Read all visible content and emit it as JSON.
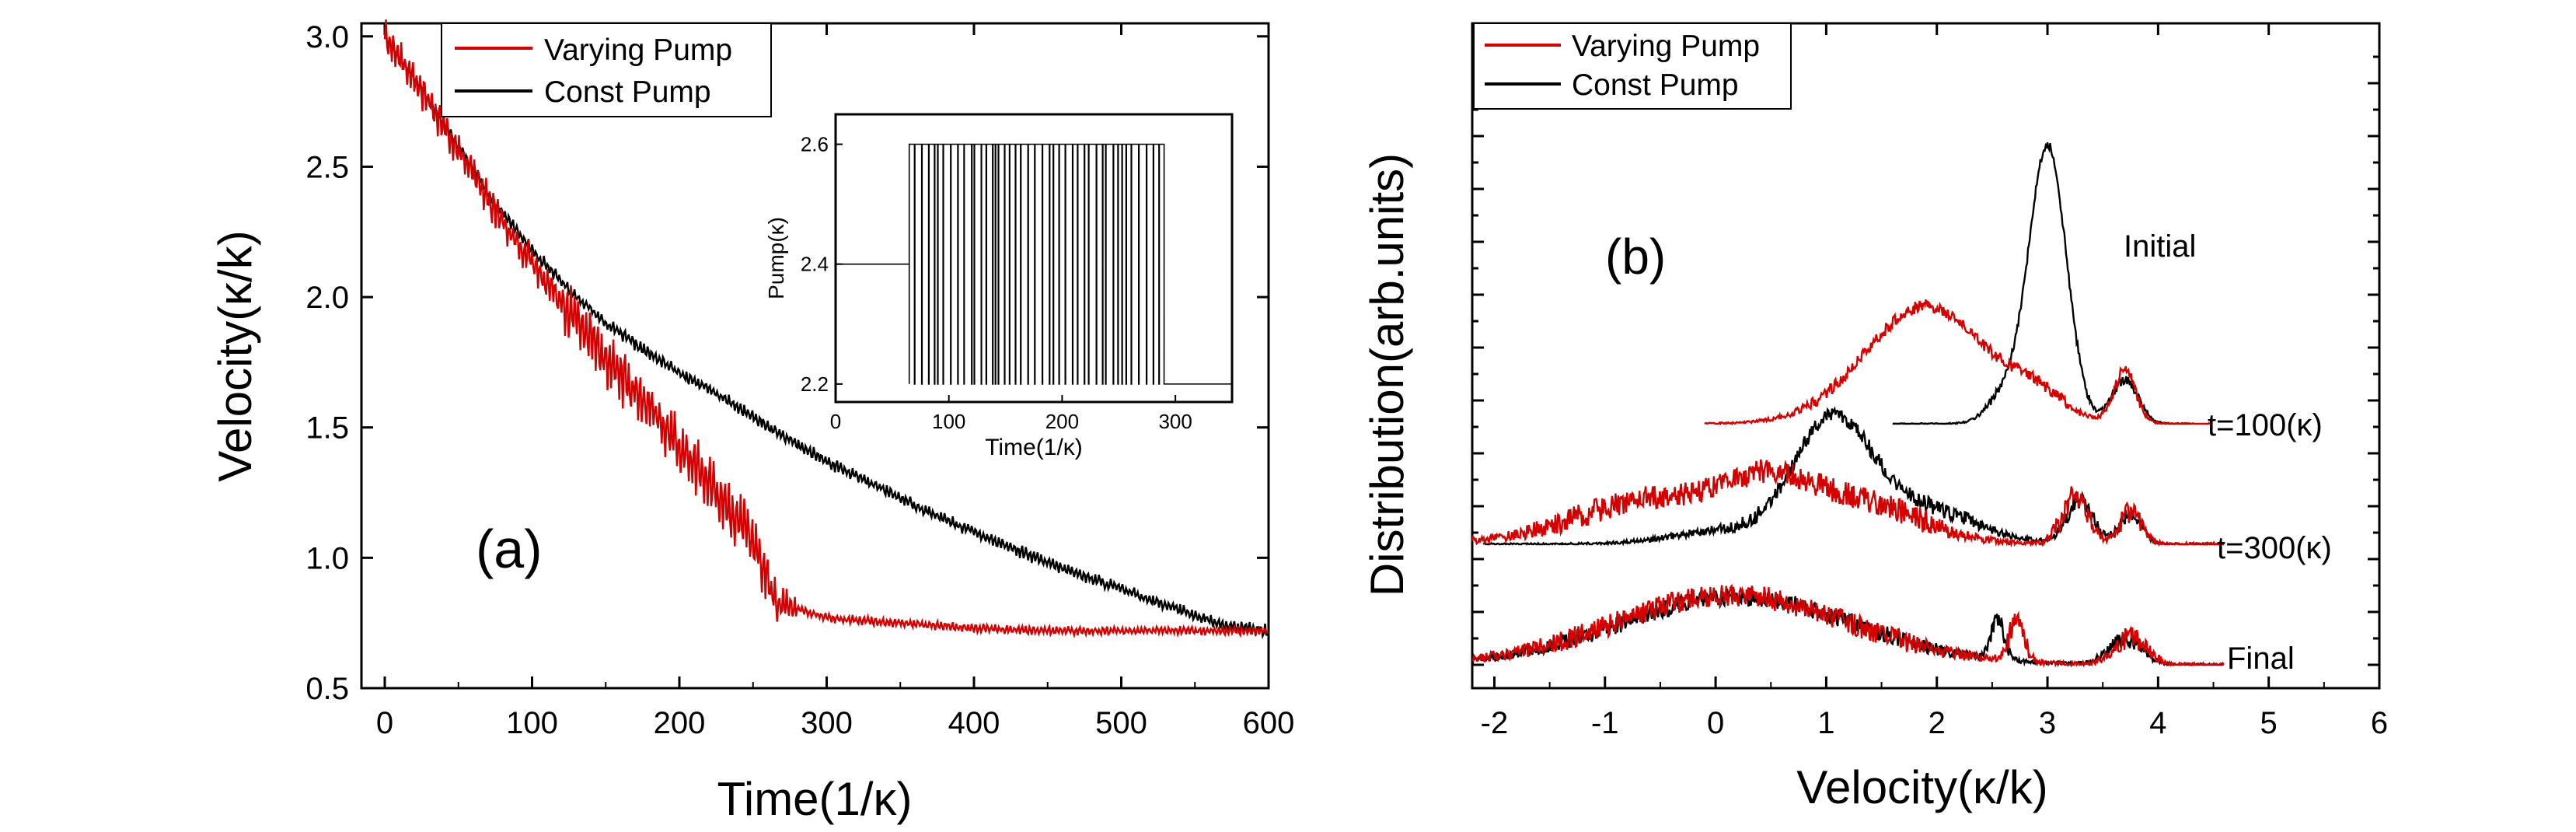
{
  "colors": {
    "varying": "#d40000",
    "const": "#000000"
  },
  "chart_data": [
    {
      "id": "a",
      "type": "line",
      "panel_label": "(a)",
      "xlabel": "Time(1/κ)",
      "ylabel": "Velocity(κ/k)",
      "xlim": [
        0,
        600
      ],
      "ylim": [
        0.5,
        3.05
      ],
      "x_ticks": [
        0,
        100,
        200,
        300,
        400,
        500,
        600
      ],
      "y_ticks": [
        0.5,
        1.0,
        1.5,
        2.0,
        2.5,
        3.0
      ],
      "x_tick_labels": [
        "0",
        "100",
        "200",
        "300",
        "400",
        "500",
        "600"
      ],
      "y_tick_labels": [
        "0.5",
        "1.0",
        "1.5",
        "2.0",
        "2.5",
        "3.0"
      ],
      "legend": [
        "Varying Pump",
        "Const Pump"
      ],
      "series": [
        {
          "name": "Const Pump",
          "color": "#000000",
          "noise": 0.018,
          "points": [
            [
              0,
              3.0
            ],
            [
              25,
              2.8
            ],
            [
              50,
              2.58
            ],
            [
              75,
              2.36
            ],
            [
              100,
              2.18
            ],
            [
              125,
              2.03
            ],
            [
              150,
              1.9
            ],
            [
              175,
              1.8
            ],
            [
              200,
              1.71
            ],
            [
              225,
              1.63
            ],
            [
              250,
              1.54
            ],
            [
              275,
              1.45
            ],
            [
              300,
              1.37
            ],
            [
              325,
              1.3
            ],
            [
              350,
              1.23
            ],
            [
              375,
              1.16
            ],
            [
              400,
              1.1
            ],
            [
              425,
              1.04
            ],
            [
              450,
              0.98
            ],
            [
              475,
              0.93
            ],
            [
              500,
              0.88
            ],
            [
              525,
              0.83
            ],
            [
              550,
              0.78
            ],
            [
              570,
              0.74
            ],
            [
              600,
              0.72
            ]
          ]
        },
        {
          "name": "Varying Pump",
          "color": "#d40000",
          "noise": 0.05,
          "points": [
            [
              0,
              3.0
            ],
            [
              25,
              2.79
            ],
            [
              50,
              2.56
            ],
            [
              75,
              2.33
            ],
            [
              100,
              2.13
            ],
            [
              125,
              1.95
            ],
            [
              150,
              1.77
            ],
            [
              175,
              1.6
            ],
            [
              200,
              1.43
            ],
            [
              225,
              1.25
            ],
            [
              250,
              1.07
            ],
            [
              265,
              0.83
            ],
            [
              300,
              0.77
            ],
            [
              350,
              0.75
            ],
            [
              400,
              0.73
            ],
            [
              450,
              0.72
            ],
            [
              500,
              0.72
            ],
            [
              600,
              0.72
            ]
          ]
        }
      ],
      "inset": {
        "type": "line",
        "xlabel": "Time(1/κ)",
        "ylabel": "Pump(κ)",
        "xlim": [
          0,
          350
        ],
        "ylim": [
          2.17,
          2.65
        ],
        "x_ticks": [
          0,
          100,
          200,
          300
        ],
        "y_ticks": [
          2.2,
          2.4,
          2.6
        ],
        "x_tick_labels": [
          "0",
          "100",
          "200",
          "300"
        ],
        "y_tick_labels": [
          "2.2",
          "2.4",
          "2.6"
        ],
        "base_level": 2.4,
        "switch_start": 65,
        "switch_end": 290,
        "high": 2.6,
        "low": 2.2
      }
    },
    {
      "id": "b",
      "type": "line",
      "panel_label": "(b)",
      "xlabel": "Velocity(κ/k)",
      "ylabel": "Distribution(arb.units)",
      "xlim": [
        -2.2,
        6
      ],
      "x_ticks": [
        -2,
        -1,
        0,
        1,
        2,
        3,
        4,
        5,
        6
      ],
      "x_tick_labels": [
        "-2",
        "-1",
        "0",
        "1",
        "2",
        "3",
        "4",
        "5",
        "6"
      ],
      "legend": [
        "Varying Pump",
        "Const Pump"
      ],
      "curve_labels": [
        "Initial",
        "t=100(κ)",
        "t=300(κ)",
        "Final"
      ],
      "series": [
        {
          "name": "Const Pump",
          "group": "t=100(κ)",
          "color": "#000000",
          "xrange": [
            1.6,
            4.3
          ],
          "noise": 0.05,
          "peaks": [
            [
              3.0,
              0.17,
              3.2
            ],
            [
              3.7,
              0.12,
              0.5
            ],
            [
              2.6,
              0.15,
              0.3
            ]
          ]
        },
        {
          "name": "Varying Pump",
          "group": "t=100(κ)",
          "color": "#d40000",
          "xrange": [
            -0.1,
            4.5
          ],
          "noise": 0.07,
          "peaks": [
            [
              1.9,
              0.55,
              1.35
            ],
            [
              3.7,
              0.1,
              0.6
            ],
            [
              2.9,
              0.25,
              0.25
            ]
          ]
        },
        {
          "name": "Const Pump",
          "group": "t=300(κ)",
          "color": "#000000",
          "xrange": [
            -2.1,
            4.6
          ],
          "noise": 0.09,
          "peaks": [
            [
              1.05,
              0.35,
              1.35
            ],
            [
              1.85,
              0.5,
              0.4
            ],
            [
              3.3,
              0.12,
              0.5
            ],
            [
              3.75,
              0.1,
              0.35
            ],
            [
              0.1,
              0.5,
              0.15
            ]
          ]
        },
        {
          "name": "Varying Pump",
          "group": "t=300(κ)",
          "color": "#d40000",
          "xrange": [
            -2.2,
            4.6
          ],
          "noise": 0.14,
          "peaks": [
            [
              -0.4,
              0.8,
              0.55
            ],
            [
              0.5,
              0.35,
              0.4
            ],
            [
              1.3,
              0.55,
              0.45
            ],
            [
              3.25,
              0.12,
              0.55
            ],
            [
              3.75,
              0.1,
              0.35
            ]
          ]
        },
        {
          "name": "Const Pump",
          "group": "Final",
          "color": "#000000",
          "xrange": [
            -2.2,
            4.6
          ],
          "noise": 0.1,
          "peaks": [
            [
              0.2,
              1.05,
              0.78
            ],
            [
              2.55,
              0.06,
              0.45
            ],
            [
              3.7,
              0.15,
              0.28
            ]
          ]
        },
        {
          "name": "Varying Pump",
          "group": "Final",
          "color": "#d40000",
          "xrange": [
            -2.2,
            4.6
          ],
          "noise": 0.13,
          "peaks": [
            [
              0.15,
              1.05,
              0.8
            ],
            [
              2.72,
              0.07,
              0.45
            ],
            [
              3.75,
              0.15,
              0.3
            ]
          ]
        }
      ]
    }
  ]
}
